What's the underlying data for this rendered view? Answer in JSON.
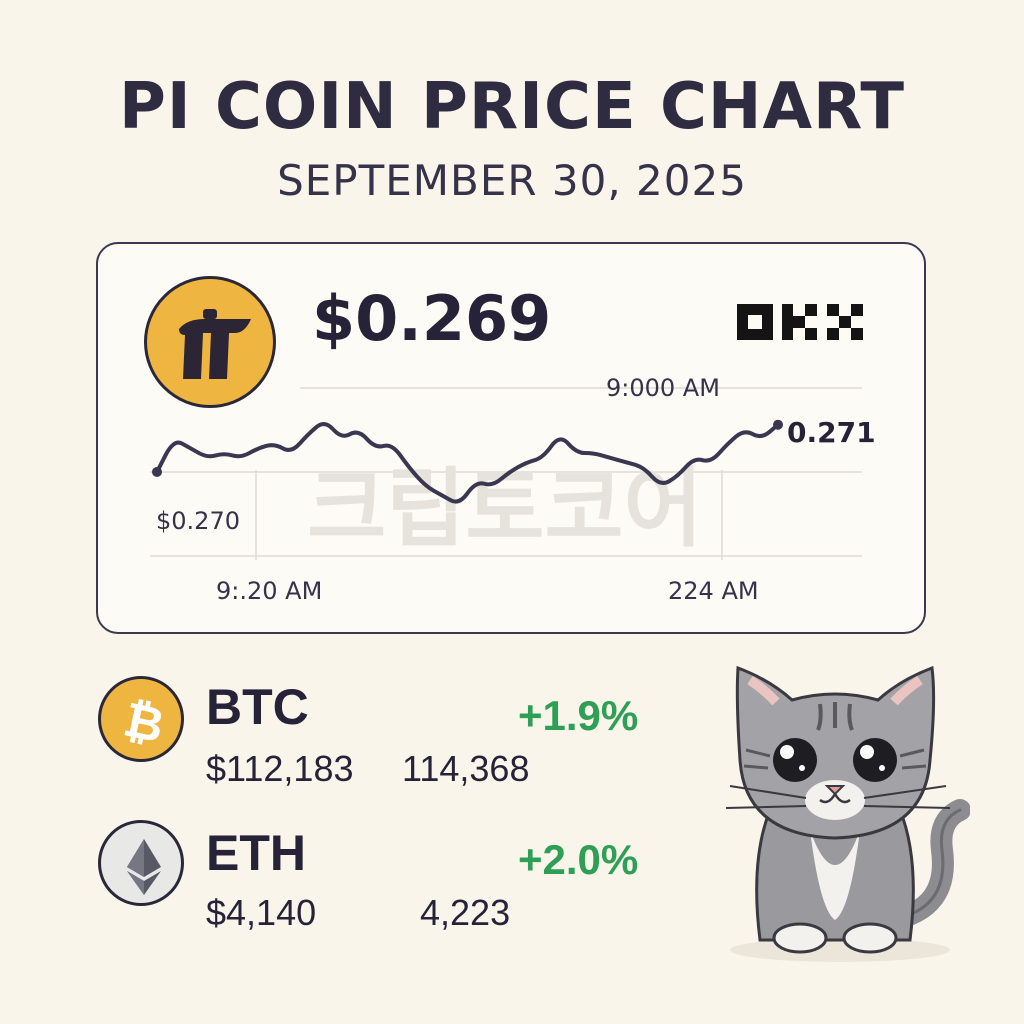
{
  "header": {
    "title": "PI COIN PRICE CHART",
    "date": "SEPTEMBER 30, 2025"
  },
  "pi_card": {
    "logo_icon": "pi-network-logo",
    "price": "$0.269",
    "exchange_logo": "OKX",
    "watermark": "크립토코어"
  },
  "chart_data": {
    "type": "line",
    "title": "",
    "xlabel": "",
    "ylabel": "",
    "time_labels": [
      "9:000 AM",
      "9:.20 AM",
      "224  AM"
    ],
    "y_labels": [
      "$0.270",
      "0.271"
    ],
    "grid": true,
    "series": [
      {
        "values": [
          0.27,
          0.2707,
          0.2705,
          0.2703,
          0.2704,
          0.2703,
          0.2705,
          0.2706,
          0.2704,
          0.2708,
          0.2711,
          0.2707,
          0.2709,
          0.2705,
          0.2706,
          0.2701,
          0.2697,
          0.2695,
          0.2693,
          0.2698,
          0.2697,
          0.27,
          0.2702,
          0.2703,
          0.2708,
          0.2704,
          0.2704,
          0.2703,
          0.2702,
          0.2701,
          0.2697,
          0.2699,
          0.2703,
          0.2702,
          0.2706,
          0.2709,
          0.2707,
          0.271
        ]
      }
    ]
  },
  "coins": [
    {
      "symbol": "BTC",
      "icon": "bitcoin-logo",
      "color": "#efb541",
      "change": "+1.9%",
      "price": "$112,183",
      "high": "114,368"
    },
    {
      "symbol": "ETH",
      "icon": "ethereum-logo",
      "color": "#e8e8e6",
      "change": "+2.0%",
      "price": "$4,140",
      "high": "4,223"
    }
  ],
  "colors": {
    "accent_gold": "#efb541",
    "positive_green": "#2f9f55",
    "text_dark": "#262338",
    "background": "#faf5ea"
  }
}
